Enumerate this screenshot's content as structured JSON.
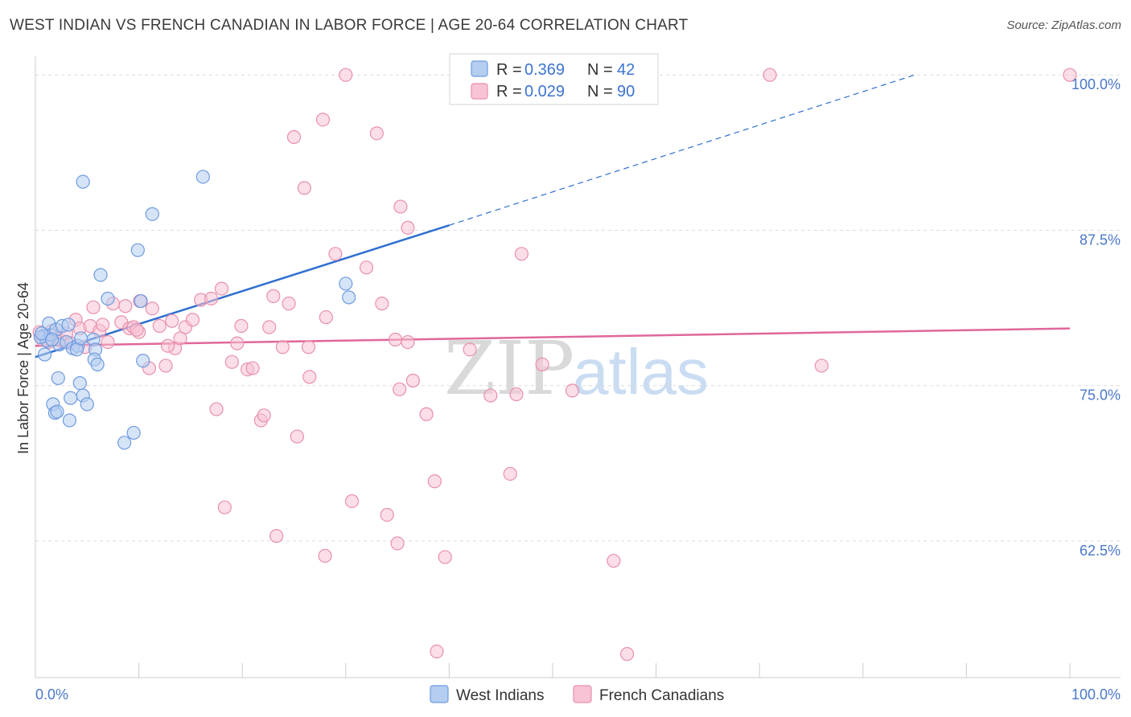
{
  "title": "WEST INDIAN VS FRENCH CANADIAN IN LABOR FORCE | AGE 20-64 CORRELATION CHART",
  "source": "Source: ZipAtlas.com",
  "colors": {
    "west_indians_fill": "#b4cdf0",
    "west_indians_stroke": "#6e9be0",
    "west_indians_line": "#2f6fd0",
    "french_canadians_fill": "#f8c3d4",
    "french_canadians_stroke": "#e890ad",
    "french_canadians_line": "#e0679a",
    "tick_label": "#4a78c9",
    "grid": "#dcdcdc"
  },
  "watermark": {
    "zip": "ZIP",
    "atlas": "atlas"
  },
  "chart_data": {
    "type": "scatter",
    "title": "WEST INDIAN VS FRENCH CANADIAN IN LABOR FORCE | AGE 20-64 CORRELATION CHART",
    "xlabel": "",
    "ylabel": "In Labor Force | Age 20-64",
    "xlim": [
      0,
      100
    ],
    "ylim": [
      51.5,
      101.5
    ],
    "x_tick_labels": [
      "0.0%",
      "100.0%"
    ],
    "y_ticks": [
      62.5,
      75.0,
      87.5,
      100.0
    ],
    "y_tick_labels": [
      "62.5%",
      "75.0%",
      "87.5%",
      "100.0%"
    ],
    "grid": "horizontal dashed",
    "legend_position": "top-center",
    "legend": [
      {
        "series": "West Indians",
        "r_label": "R =",
        "r": "0.369",
        "n_label": "N =",
        "n": "42"
      },
      {
        "series": "French Canadians",
        "r_label": "R =",
        "r": "0.029",
        "n_label": "N =",
        "n": "90"
      }
    ],
    "series": [
      {
        "name": "West Indians",
        "trend": {
          "x": [
            0.0,
            40.0
          ],
          "y": [
            77.3,
            87.9
          ],
          "extended_to": [
            85.0,
            100.0
          ]
        },
        "points": [
          [
            0.8,
            79.0
          ],
          [
            1.1,
            78.6
          ],
          [
            0.5,
            78.9
          ],
          [
            1.5,
            79.1
          ],
          [
            0.9,
            77.5
          ],
          [
            1.3,
            80.0
          ],
          [
            2.0,
            79.5
          ],
          [
            2.3,
            78.3
          ],
          [
            2.6,
            79.8
          ],
          [
            3.0,
            78.5
          ],
          [
            3.2,
            79.9
          ],
          [
            3.6,
            78.0
          ],
          [
            4.1,
            78.2
          ],
          [
            4.0,
            77.9
          ],
          [
            4.4,
            78.8
          ],
          [
            5.6,
            78.7
          ],
          [
            5.8,
            77.9
          ],
          [
            7.0,
            82.0
          ],
          [
            6.3,
            83.9
          ],
          [
            2.2,
            75.6
          ],
          [
            1.7,
            73.5
          ],
          [
            1.9,
            72.8
          ],
          [
            2.1,
            72.9
          ],
          [
            4.6,
            74.2
          ],
          [
            5.0,
            73.5
          ],
          [
            3.4,
            74.0
          ],
          [
            3.3,
            72.2
          ],
          [
            4.3,
            75.2
          ],
          [
            5.7,
            77.1
          ],
          [
            6.0,
            76.7
          ],
          [
            8.6,
            70.4
          ],
          [
            9.5,
            71.2
          ],
          [
            10.4,
            77.0
          ],
          [
            10.2,
            81.8
          ],
          [
            9.9,
            85.9
          ],
          [
            11.3,
            88.8
          ],
          [
            4.6,
            91.4
          ],
          [
            16.2,
            91.8
          ],
          [
            30.0,
            83.2
          ],
          [
            30.3,
            82.1
          ],
          [
            0.6,
            79.2
          ],
          [
            1.6,
            78.7
          ]
        ]
      },
      {
        "name": "French Canadians",
        "trend": {
          "x": [
            0.0,
            100.0
          ],
          "y": [
            78.2,
            79.6
          ]
        },
        "points": [
          [
            0.4,
            79.3
          ],
          [
            0.7,
            78.7
          ],
          [
            1.0,
            79.0
          ],
          [
            1.3,
            78.5
          ],
          [
            1.6,
            79.4
          ],
          [
            2.0,
            78.8
          ],
          [
            2.5,
            78.6
          ],
          [
            3.0,
            79.2
          ],
          [
            3.4,
            78.4
          ],
          [
            3.9,
            80.3
          ],
          [
            4.3,
            79.6
          ],
          [
            4.8,
            78.1
          ],
          [
            5.3,
            79.8
          ],
          [
            5.6,
            81.3
          ],
          [
            6.2,
            79.4
          ],
          [
            6.5,
            79.9
          ],
          [
            7.0,
            78.5
          ],
          [
            7.5,
            81.6
          ],
          [
            8.3,
            80.1
          ],
          [
            8.7,
            81.4
          ],
          [
            9.1,
            79.6
          ],
          [
            9.5,
            79.7
          ],
          [
            10.0,
            79.3
          ],
          [
            10.1,
            81.8
          ],
          [
            11.0,
            76.4
          ],
          [
            11.3,
            81.2
          ],
          [
            12.0,
            79.8
          ],
          [
            12.6,
            76.6
          ],
          [
            13.2,
            80.2
          ],
          [
            13.5,
            78.0
          ],
          [
            14.0,
            78.8
          ],
          [
            14.5,
            79.7
          ],
          [
            15.2,
            80.3
          ],
          [
            16.0,
            81.9
          ],
          [
            17.0,
            82.0
          ],
          [
            17.5,
            73.1
          ],
          [
            18.0,
            82.8
          ],
          [
            19.0,
            76.9
          ],
          [
            19.5,
            78.4
          ],
          [
            19.9,
            79.8
          ],
          [
            20.5,
            76.3
          ],
          [
            21.0,
            76.4
          ],
          [
            21.8,
            72.2
          ],
          [
            22.1,
            72.6
          ],
          [
            22.6,
            79.7
          ],
          [
            23.0,
            82.2
          ],
          [
            23.9,
            78.1
          ],
          [
            24.5,
            81.6
          ],
          [
            25.3,
            70.9
          ],
          [
            26.4,
            78.1
          ],
          [
            26.5,
            75.7
          ],
          [
            18.3,
            65.2
          ],
          [
            23.3,
            62.9
          ],
          [
            28.0,
            61.3
          ],
          [
            27.8,
            96.4
          ],
          [
            25.0,
            95.0
          ],
          [
            30.0,
            100.0
          ],
          [
            33.0,
            95.3
          ],
          [
            26.0,
            90.9
          ],
          [
            29.0,
            85.6
          ],
          [
            32.0,
            84.5
          ],
          [
            33.5,
            81.6
          ],
          [
            34.8,
            78.7
          ],
          [
            36.0,
            78.5
          ],
          [
            35.2,
            74.7
          ],
          [
            36.5,
            75.4
          ],
          [
            37.8,
            72.7
          ],
          [
            38.6,
            67.3
          ],
          [
            42.0,
            77.9
          ],
          [
            44.0,
            74.2
          ],
          [
            45.9,
            67.9
          ],
          [
            46.5,
            74.3
          ],
          [
            49.0,
            76.7
          ],
          [
            51.9,
            74.6
          ],
          [
            34.0,
            64.6
          ],
          [
            35.0,
            62.3
          ],
          [
            30.6,
            65.7
          ],
          [
            39.6,
            61.2
          ],
          [
            55.9,
            60.9
          ],
          [
            38.8,
            53.6
          ],
          [
            57.2,
            53.4
          ],
          [
            47.0,
            85.6
          ],
          [
            35.3,
            89.4
          ],
          [
            36.0,
            87.7
          ],
          [
            71.0,
            100.0
          ],
          [
            100.0,
            100.0
          ],
          [
            76.0,
            76.6
          ],
          [
            9.8,
            79.5
          ],
          [
            12.8,
            78.2
          ],
          [
            28.1,
            80.5
          ]
        ]
      }
    ]
  },
  "bottom_legend": [
    "West Indians",
    "French Canadians"
  ]
}
